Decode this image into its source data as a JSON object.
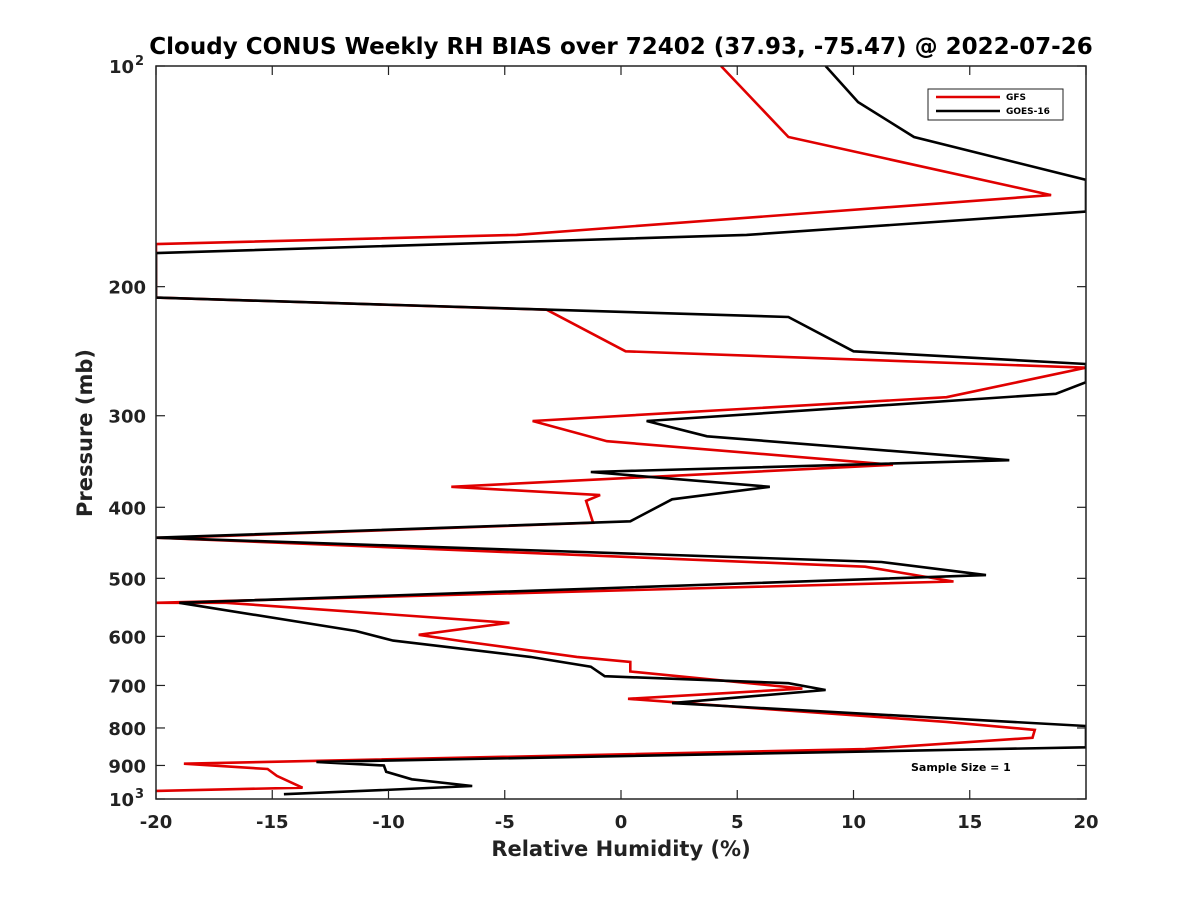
{
  "chart_data": {
    "type": "line",
    "title": "Cloudy CONUS Weekly RH BIAS over 72402 (37.93, -75.47) @ 2022-07-26",
    "xlabel": "Relative Humidity (%)",
    "ylabel": "Pressure (mb)",
    "xlim": [
      -20,
      20
    ],
    "ylim": [
      100,
      1000
    ],
    "y_scale": "log",
    "y_reversed": true,
    "x_ticks": [
      -20,
      -15,
      -10,
      -5,
      0,
      5,
      10,
      15,
      20
    ],
    "x_tick_labels": [
      "-20",
      "-15",
      "-10",
      "-5",
      "0",
      "5",
      "10",
      "15",
      "20"
    ],
    "y_ticks": [
      100,
      200,
      300,
      400,
      500,
      600,
      700,
      800,
      900,
      1000
    ],
    "y_tick_labels": [
      {
        "base": "10",
        "exp": "2"
      },
      {
        "base": "200",
        "exp": ""
      },
      {
        "base": "300",
        "exp": ""
      },
      {
        "base": "400",
        "exp": ""
      },
      {
        "base": "500",
        "exp": ""
      },
      {
        "base": "600",
        "exp": ""
      },
      {
        "base": "700",
        "exp": ""
      },
      {
        "base": "800",
        "exp": ""
      },
      {
        "base": "900",
        "exp": ""
      },
      {
        "base": "10",
        "exp": "3"
      }
    ],
    "grid": false,
    "legend_position": "top-right",
    "annotation": "Sample Size = 1",
    "series": [
      {
        "name": "GFS",
        "color": "#e00000",
        "points": [
          [
            4.3,
            100
          ],
          [
            7.2,
            125
          ],
          [
            18.5,
            150
          ],
          [
            -4.5,
            170
          ],
          [
            -20,
            175
          ],
          [
            -20,
            207
          ],
          [
            -3.2,
            215
          ],
          [
            0.2,
            245
          ],
          [
            20,
            258
          ],
          [
            14,
            283
          ],
          [
            -3.8,
            305
          ],
          [
            -0.6,
            325
          ],
          [
            11.7,
            350
          ],
          [
            -7.3,
            375
          ],
          [
            -0.9,
            385
          ],
          [
            -1.5,
            392
          ],
          [
            -1.2,
            420
          ],
          [
            -19.3,
            440
          ],
          [
            -20,
            440
          ],
          [
            10.5,
            482
          ],
          [
            14.3,
            505
          ],
          [
            -20,
            540
          ],
          [
            -17,
            540
          ],
          [
            -4.8,
            575
          ],
          [
            -8.7,
            597
          ],
          [
            -6.7,
            610
          ],
          [
            -1.9,
            640
          ],
          [
            0.4,
            650
          ],
          [
            0.4,
            670
          ],
          [
            6.5,
            700
          ],
          [
            7.8,
            707
          ],
          [
            0.3,
            730
          ],
          [
            6.5,
            755
          ],
          [
            14,
            785
          ],
          [
            17.8,
            805
          ],
          [
            17.7,
            825
          ],
          [
            10.5,
            855
          ],
          [
            -18.8,
            895
          ],
          [
            -15.2,
            910
          ],
          [
            -14.8,
            930
          ],
          [
            -13.7,
            965
          ],
          [
            -20,
            975
          ]
        ]
      },
      {
        "name": "GOES-16",
        "color": "#000000",
        "points": [
          [
            8.8,
            100
          ],
          [
            10.2,
            112
          ],
          [
            12.6,
            125
          ],
          [
            20,
            143
          ],
          [
            20,
            158
          ],
          [
            5.4,
            170
          ],
          [
            -20,
            180
          ],
          [
            -20,
            207
          ],
          [
            7.2,
            220
          ],
          [
            10,
            245
          ],
          [
            20,
            255
          ],
          [
            20,
            270
          ],
          [
            18.7,
            280
          ],
          [
            1.1,
            305
          ],
          [
            3.7,
            320
          ],
          [
            16.7,
            345
          ],
          [
            -1.3,
            358
          ],
          [
            6.4,
            375
          ],
          [
            2.2,
            390
          ],
          [
            0.4,
            418
          ],
          [
            -20,
            440
          ],
          [
            11.2,
            475
          ],
          [
            15.7,
            495
          ],
          [
            -19,
            540
          ],
          [
            -11.4,
            590
          ],
          [
            -9.8,
            608
          ],
          [
            -3.9,
            640
          ],
          [
            -1.3,
            660
          ],
          [
            -0.7,
            680
          ],
          [
            7.2,
            695
          ],
          [
            8.8,
            710
          ],
          [
            2.2,
            740
          ],
          [
            20,
            795
          ],
          [
            20,
            803
          ],
          [
            20,
            850
          ],
          [
            -13.1,
            890
          ],
          [
            -10.2,
            900
          ],
          [
            -10.1,
            918
          ],
          [
            -9,
            940
          ],
          [
            -6.4,
            960
          ],
          [
            -10.2,
            972
          ],
          [
            -14.5,
            985
          ]
        ]
      }
    ]
  }
}
